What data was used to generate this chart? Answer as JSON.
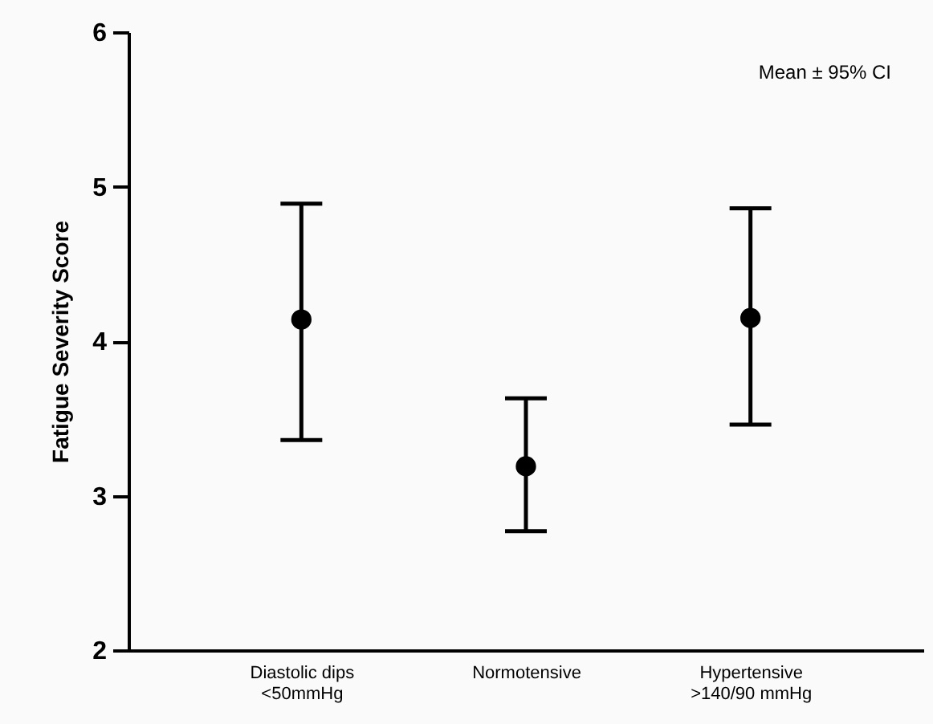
{
  "chart_data": {
    "type": "scatter",
    "ylabel": "Fatigue Severity Score",
    "categories": [
      "Diastolic dips\n<50mmHg",
      "Normotensive",
      "Hypertensive\n>140/90 mmHg"
    ],
    "series": [
      {
        "color": "#000000",
        "values": [
          4.14,
          3.19,
          4.15
        ],
        "errors": [
          [
            3.36,
            4.89
          ],
          [
            2.77,
            3.63
          ],
          [
            3.46,
            4.86
          ]
        ]
      }
    ],
    "ylim": [
      2,
      6
    ],
    "yticks": [
      2,
      3,
      4,
      5,
      6
    ],
    "grid": false,
    "marker": "circle",
    "annotations": [
      "Mean ± 95% CI"
    ]
  }
}
